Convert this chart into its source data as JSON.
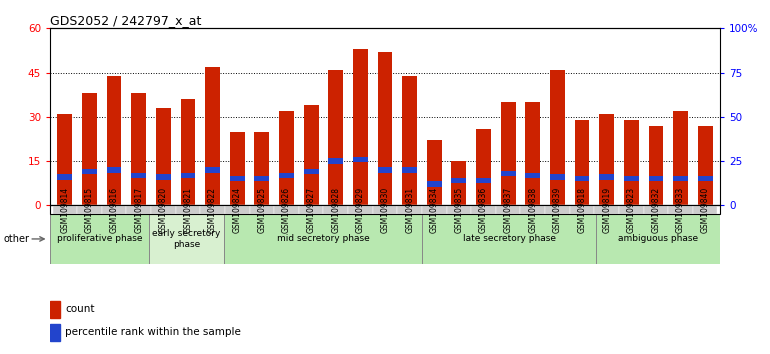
{
  "title": "GDS2052 / 242797_x_at",
  "samples": [
    "GSM109814",
    "GSM109815",
    "GSM109816",
    "GSM109817",
    "GSM109820",
    "GSM109821",
    "GSM109822",
    "GSM109824",
    "GSM109825",
    "GSM109826",
    "GSM109827",
    "GSM109828",
    "GSM109829",
    "GSM109830",
    "GSM109831",
    "GSM109834",
    "GSM109835",
    "GSM109836",
    "GSM109837",
    "GSM109838",
    "GSM109839",
    "GSM109818",
    "GSM109819",
    "GSM109823",
    "GSM109832",
    "GSM109833",
    "GSM109840"
  ],
  "count_values": [
    31,
    38,
    44,
    38,
    33,
    36,
    47,
    25,
    25,
    32,
    34,
    46,
    53,
    52,
    44,
    22,
    15,
    26,
    35,
    35,
    46,
    29,
    31,
    29,
    27,
    32,
    27
  ],
  "percentile_values": [
    16,
    19,
    20,
    17,
    16,
    17,
    20,
    15,
    15,
    17,
    19,
    25,
    26,
    20,
    20,
    12,
    14,
    14,
    18,
    17,
    16,
    15,
    16,
    15,
    15,
    15,
    15
  ],
  "phases": [
    {
      "label": "proliferative phase",
      "start": 0,
      "end": 4,
      "color": "#b8e8b0"
    },
    {
      "label": "early secretory\nphase",
      "start": 4,
      "end": 7,
      "color": "#d8f0d0"
    },
    {
      "label": "mid secretory phase",
      "start": 7,
      "end": 15,
      "color": "#b8e8b0"
    },
    {
      "label": "late secretory phase",
      "start": 15,
      "end": 22,
      "color": "#b8e8b0"
    },
    {
      "label": "ambiguous phase",
      "start": 22,
      "end": 27,
      "color": "#b8e8b0"
    }
  ],
  "ylim_left": [
    0,
    60
  ],
  "ylim_right": [
    0,
    100
  ],
  "yticks_left": [
    0,
    15,
    30,
    45,
    60
  ],
  "yticks_right": [
    0,
    25,
    50,
    75,
    100
  ],
  "ytick_labels_left": [
    "0",
    "15",
    "30",
    "45",
    "60"
  ],
  "ytick_labels_right": [
    "0",
    "25",
    "50",
    "75",
    "100%"
  ],
  "bar_color": "#cc2200",
  "percentile_color": "#2244cc",
  "bar_width": 0.6,
  "tick_bg_color": "#cccccc",
  "plot_bg_color": "#ffffff",
  "other_label": "other"
}
